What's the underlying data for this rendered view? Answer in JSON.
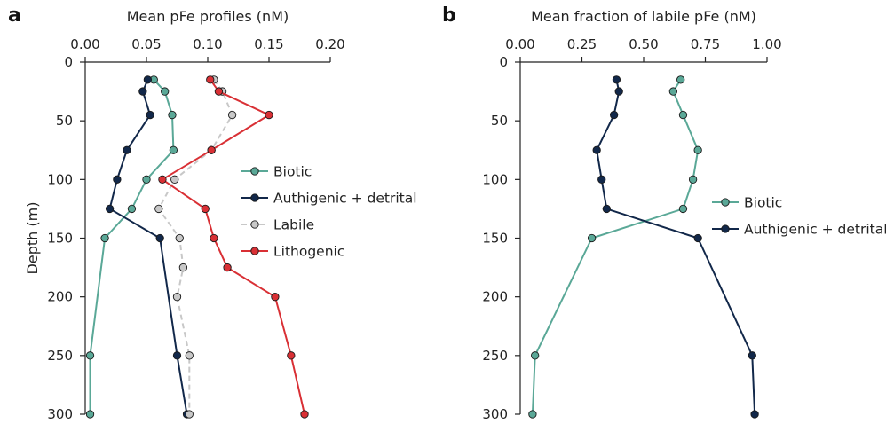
{
  "chart_data": [
    {
      "panel": "a",
      "type": "line",
      "title": "Mean pFe profiles (nM)",
      "xlabel": "",
      "ylabel": "Depth (m)",
      "x_axis_position": "top",
      "y_inverted": true,
      "xlim": [
        0,
        0.2
      ],
      "ylim": [
        0,
        300
      ],
      "xticks": [
        "0.00",
        "0.05",
        "0.10",
        "0.15",
        "0.20"
      ],
      "yticks": [
        "0",
        "50",
        "100",
        "150",
        "200",
        "250",
        "300"
      ],
      "grid": false,
      "legend": "center-right",
      "series": [
        {
          "name": "Biotic",
          "color": "#5aa897",
          "style": "solid",
          "depth": [
            15,
            25,
            45,
            75,
            100,
            125,
            150,
            250,
            300
          ],
          "values": [
            0.056,
            0.065,
            0.071,
            0.072,
            0.05,
            0.038,
            0.016,
            0.004,
            0.004
          ]
        },
        {
          "name": "Authigenic + detrital",
          "color": "#12284a",
          "style": "solid",
          "depth": [
            15,
            25,
            45,
            75,
            100,
            125,
            150,
            250,
            300
          ],
          "values": [
            0.051,
            0.047,
            0.053,
            0.034,
            0.026,
            0.02,
            0.061,
            0.075,
            0.083
          ]
        },
        {
          "name": "Labile",
          "color": "#c8c8c8",
          "style": "dashed",
          "depth": [
            15,
            25,
            45,
            75,
            100,
            125,
            150,
            175,
            200,
            250,
            300
          ],
          "values": [
            0.105,
            0.112,
            0.12,
            0.103,
            0.073,
            0.06,
            0.077,
            0.08,
            0.075,
            0.085,
            0.085
          ]
        },
        {
          "name": "Lithogenic",
          "color": "#d93035",
          "style": "solid",
          "depth": [
            15,
            25,
            45,
            75,
            100,
            125,
            150,
            175,
            200,
            250,
            300
          ],
          "values": [
            0.102,
            0.109,
            0.15,
            0.103,
            0.063,
            0.098,
            0.105,
            0.116,
            0.155,
            0.168,
            0.179
          ]
        }
      ]
    },
    {
      "panel": "b",
      "type": "line",
      "title": "Mean fraction of labile pFe (nM)",
      "xlabel": "",
      "ylabel": "",
      "x_axis_position": "top",
      "y_inverted": true,
      "xlim": [
        0,
        1
      ],
      "ylim": [
        0,
        300
      ],
      "xticks": [
        "0.00",
        "0.25",
        "0.50",
        "0.75",
        "1.00"
      ],
      "yticks": [
        "0",
        "50",
        "100",
        "150",
        "200",
        "250",
        "300"
      ],
      "grid": false,
      "legend": "center-right",
      "series": [
        {
          "name": "Biotic",
          "color": "#5aa897",
          "style": "solid",
          "depth": [
            15,
            25,
            45,
            75,
            100,
            125,
            150,
            250,
            300
          ],
          "values": [
            0.65,
            0.62,
            0.66,
            0.72,
            0.7,
            0.66,
            0.29,
            0.06,
            0.05
          ]
        },
        {
          "name": "Authigenic + detrital",
          "color": "#12284a",
          "style": "solid",
          "depth": [
            15,
            25,
            45,
            75,
            100,
            125,
            150,
            250,
            300
          ],
          "values": [
            0.39,
            0.4,
            0.38,
            0.31,
            0.33,
            0.35,
            0.72,
            0.94,
            0.95
          ]
        }
      ]
    }
  ]
}
